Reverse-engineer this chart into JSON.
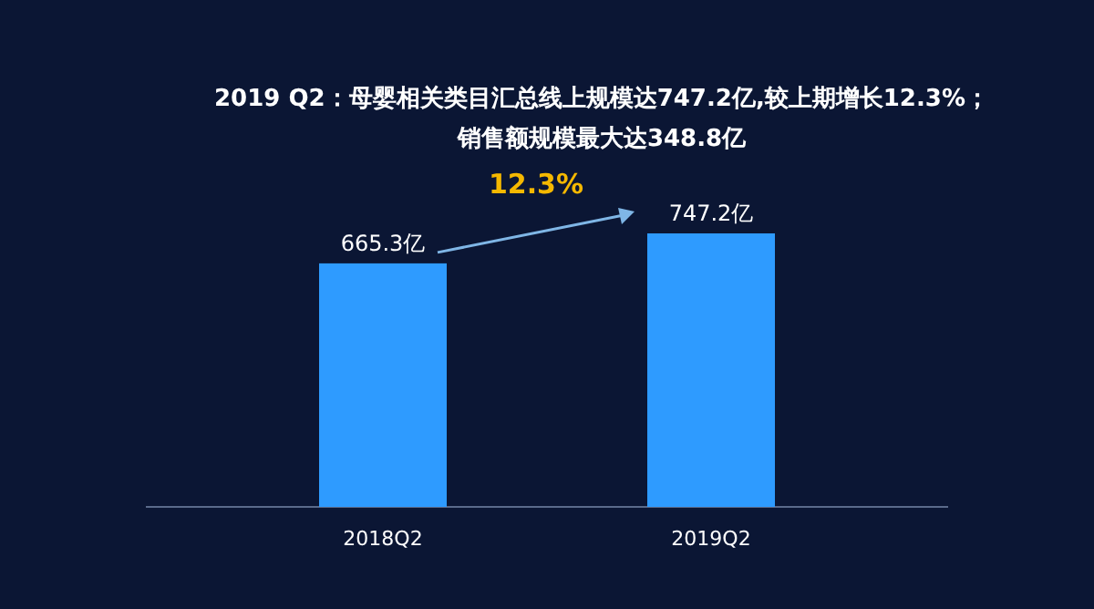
{
  "chart_data": {
    "type": "bar",
    "title": "2019 Q2：母婴相关类目汇总线上规模达747.2亿,较上期增长12.3%；",
    "subtitle": "销售额规模最大达348.8亿",
    "categories": [
      "2018Q2",
      "2019Q2"
    ],
    "values": [
      665.3,
      747.2
    ],
    "value_labels": [
      "665.3亿",
      "747.2亿"
    ],
    "color": "#2e9bff",
    "annotations": [
      "12.3%"
    ]
  }
}
